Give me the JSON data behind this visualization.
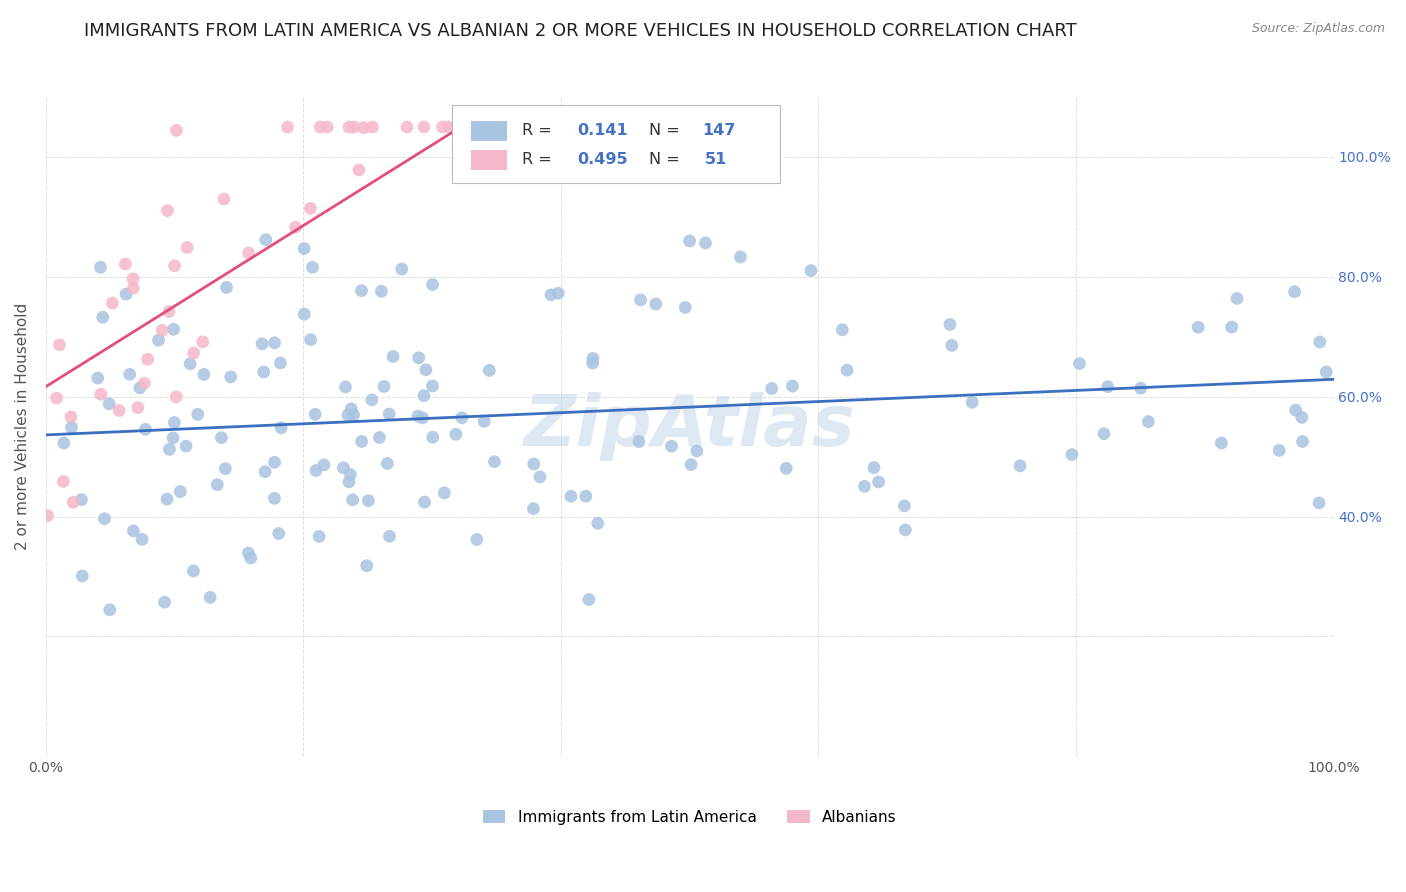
{
  "title": "IMMIGRANTS FROM LATIN AMERICA VS ALBANIAN 2 OR MORE VEHICLES IN HOUSEHOLD CORRELATION CHART",
  "source": "Source: ZipAtlas.com",
  "ylabel": "2 or more Vehicles in Household",
  "watermark": "ZipAtlas",
  "xlim": [
    0.0,
    1.0
  ],
  "ylim": [
    0.0,
    1.1
  ],
  "blue_color": "#a8c4e0",
  "blue_line_color": "#3b6fbf",
  "pink_color": "#f5b8c8",
  "pink_line_color": "#e0507a",
  "R_blue": 0.141,
  "N_blue": 147,
  "R_pink": 0.495,
  "N_pink": 51,
  "background_color": "#ffffff",
  "grid_color": "#dddddd",
  "title_fontsize": 13,
  "axis_fontsize": 11,
  "tick_fontsize": 10,
  "legend_text_color": "#4472c4",
  "legend_label_color": "#333333"
}
